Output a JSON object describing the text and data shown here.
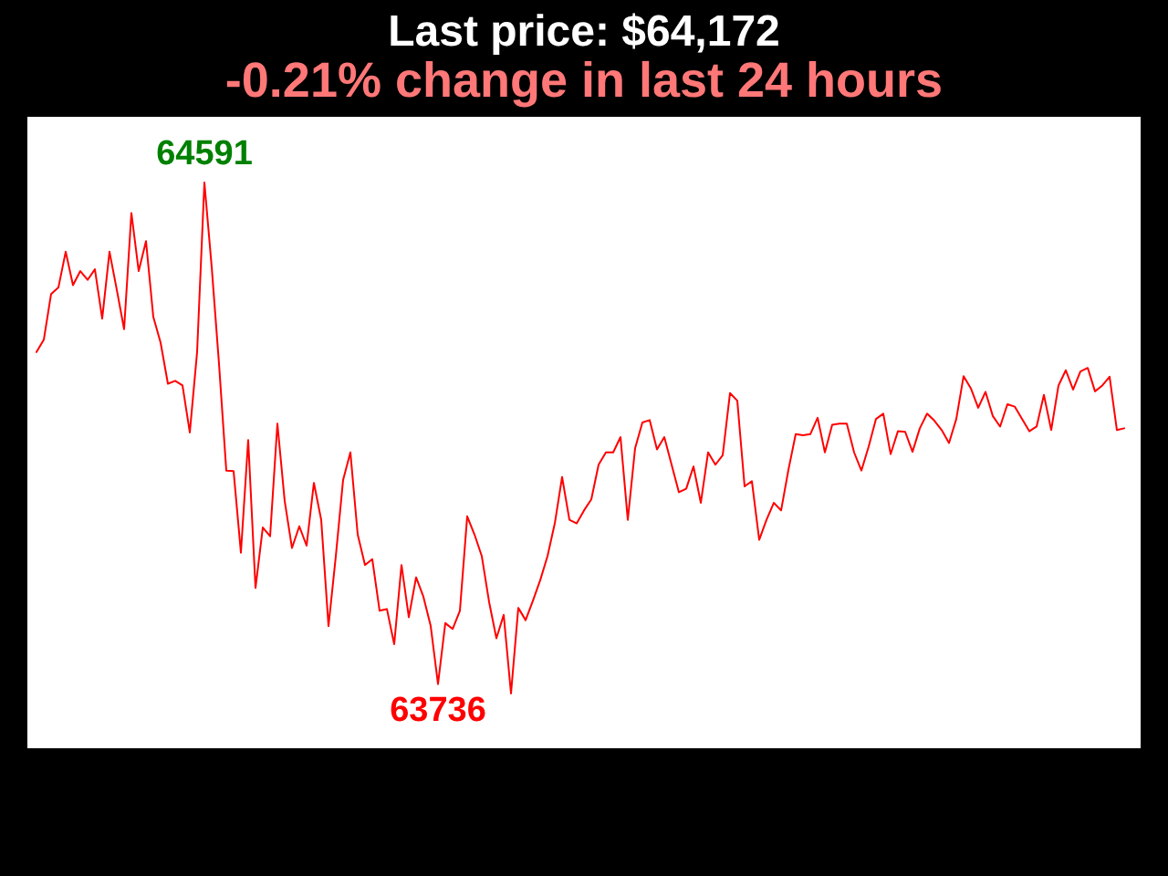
{
  "chart_data": {
    "type": "line",
    "title": "Last price: $64,172",
    "subtitle": "-0.21% change in last 24 hours",
    "categories": [
      null,
      null,
      null,
      null,
      null,
      null,
      null,
      null,
      null,
      null,
      null,
      null,
      null,
      null,
      null,
      null,
      null,
      null,
      null,
      null,
      null,
      null,
      null,
      null,
      null,
      null,
      null,
      null,
      null,
      null,
      null,
      null,
      null,
      null,
      null,
      null,
      null,
      null,
      null,
      null,
      null,
      null,
      null,
      null,
      null,
      null,
      null,
      null,
      null,
      null,
      null,
      null,
      null,
      null,
      null,
      null,
      null,
      null,
      null,
      null,
      null,
      null,
      null,
      null,
      null,
      null,
      null,
      null,
      null,
      null,
      null,
      null,
      null,
      null,
      null,
      null,
      null,
      null,
      null,
      null,
      null,
      null,
      null,
      null,
      null,
      null,
      null,
      null,
      null,
      null,
      null,
      null,
      null,
      null,
      null,
      null,
      null,
      null,
      null,
      null,
      null,
      null,
      null,
      null,
      null,
      null,
      null,
      null,
      null,
      null,
      null,
      null,
      null,
      null,
      null,
      null,
      null,
      null,
      null,
      null,
      null,
      null,
      null,
      null,
      null,
      null,
      null,
      null,
      null,
      null,
      null,
      null,
      null,
      null,
      null,
      null,
      null,
      null,
      null,
      null,
      null,
      null,
      null,
      null,
      null,
      null,
      null,
      null,
      null,
      null
    ],
    "color": "#ff0000",
    "values": [
      64302,
      64323,
      64401,
      64412,
      64473,
      64416,
      64440,
      64425,
      64443,
      64359,
      64473,
      64408,
      64341,
      64539,
      64440,
      64491,
      64362,
      64318,
      64248,
      64253,
      64245,
      64165,
      64302,
      64591,
      64447,
      64282,
      64100,
      64099,
      63960,
      64152,
      63900,
      64003,
      63988,
      64180,
      64048,
      63968,
      64005,
      63972,
      64079,
      64016,
      63835,
      63954,
      64084,
      64131,
      63991,
      63939,
      63949,
      63861,
      63864,
      63804,
      63939,
      63850,
      63918,
      63885,
      63835,
      63736,
      63840,
      63830,
      63861,
      64022,
      63991,
      63954,
      63876,
      63814,
      63854,
      63720,
      63866,
      63845,
      63878,
      63913,
      63954,
      64010,
      64089,
      64016,
      64010,
      64032,
      64051,
      64110,
      64131,
      64131,
      64157,
      64016,
      64138,
      64182,
      64186,
      64136,
      64157,
      64110,
      64063,
      64069,
      64107,
      64045,
      64131,
      64110,
      64126,
      64232,
      64219,
      64073,
      64082,
      63982,
      64016,
      64045,
      64032,
      64101,
      64162,
      64160,
      64162,
      64190,
      64131,
      64178,
      64180,
      64180,
      64131,
      64100,
      64141,
      64188,
      64197,
      64128,
      64167,
      64166,
      64132,
      64172,
      64197,
      64185,
      64169,
      64147,
      64188,
      64261,
      64240,
      64207,
      64234,
      64193,
      64175,
      64213,
      64209,
      64188,
      64167,
      64175,
      64229,
      64169,
      64245,
      64271,
      64238,
      64269,
      64275,
      64235,
      64245,
      64260,
      64169,
      64172
    ],
    "value_labels": [
      null,
      null,
      null,
      null,
      null,
      null,
      null,
      null,
      null,
      null,
      null,
      null,
      null,
      null,
      null,
      null,
      null,
      null,
      null,
      null,
      null,
      null,
      null,
      "64591",
      null,
      null,
      null,
      null,
      null,
      null,
      null,
      null,
      null,
      null,
      null,
      null,
      null,
      null,
      null,
      null,
      null,
      null,
      null,
      null,
      null,
      null,
      null,
      null,
      null,
      null,
      null,
      null,
      null,
      null,
      null,
      "63736",
      null,
      null,
      null,
      null,
      null,
      null,
      null,
      null,
      null,
      null,
      null,
      null,
      null,
      null,
      null,
      null,
      null,
      null,
      null,
      null,
      null,
      null,
      null,
      null,
      null,
      null,
      null,
      null,
      null,
      null,
      null,
      null,
      null,
      null,
      null,
      null,
      null,
      null,
      null,
      null,
      null,
      null,
      null,
      null,
      null,
      null,
      null,
      null,
      null,
      null,
      null,
      null,
      null,
      null,
      null,
      null,
      null,
      null,
      null,
      null,
      null,
      null,
      null,
      null,
      null,
      null,
      null,
      null,
      null,
      null,
      null,
      null,
      null,
      null,
      null,
      null,
      null,
      null,
      null,
      null,
      null,
      null,
      null,
      null,
      null,
      null,
      null,
      null,
      null,
      null,
      null,
      null,
      null,
      null
    ]
  }
}
